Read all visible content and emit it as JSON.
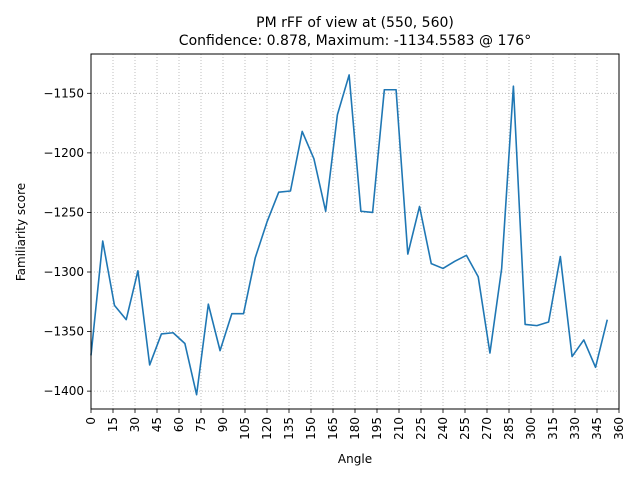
{
  "chart_data": {
    "type": "line",
    "title_line1": "PM rFF of view at (550, 560)",
    "title_line2": "Confidence: 0.878, Maximum: -1134.5583 @ 176°",
    "xlabel": "Angle",
    "ylabel": "Familiarity score",
    "xlim": [
      0,
      360
    ],
    "ylim": [
      -1415,
      -1117
    ],
    "xticks": [
      0,
      15,
      30,
      45,
      60,
      75,
      90,
      105,
      120,
      135,
      150,
      165,
      180,
      195,
      210,
      225,
      240,
      255,
      270,
      285,
      300,
      315,
      330,
      345,
      360
    ],
    "yticks": [
      -1150,
      -1200,
      -1250,
      -1300,
      -1350,
      -1400
    ],
    "ytick_labels": [
      "−1150",
      "−1200",
      "−1250",
      "−1300",
      "−1350",
      "−1400"
    ],
    "grid": true,
    "color": "#1f77b4",
    "series": [
      {
        "x": [
          0,
          8,
          16,
          24,
          32,
          40,
          48,
          56,
          64,
          72,
          80,
          88,
          96,
          104,
          112,
          120,
          128,
          136,
          144,
          152,
          160,
          168,
          176,
          184,
          192,
          200,
          208,
          216,
          224,
          232,
          240,
          248,
          256,
          264,
          272,
          280,
          288,
          296,
          304,
          312,
          320,
          328,
          336,
          344,
          352
        ],
        "y": [
          -1370,
          -1274,
          -1328,
          -1340,
          -1299,
          -1378,
          -1352,
          -1351,
          -1360,
          -1403,
          -1327,
          -1366,
          -1335,
          -1335,
          -1288,
          -1258,
          -1233,
          -1232,
          -1182,
          -1205,
          -1249,
          -1168,
          -1134.5583,
          -1249,
          -1250,
          -1147,
          -1147,
          -1285,
          -1245,
          -1293,
          -1297,
          -1291,
          -1286,
          -1304,
          -1368,
          -1297,
          -1144,
          -1344,
          -1345,
          -1342,
          -1287,
          -1371,
          -1357,
          -1380,
          -1340
        ]
      }
    ]
  }
}
